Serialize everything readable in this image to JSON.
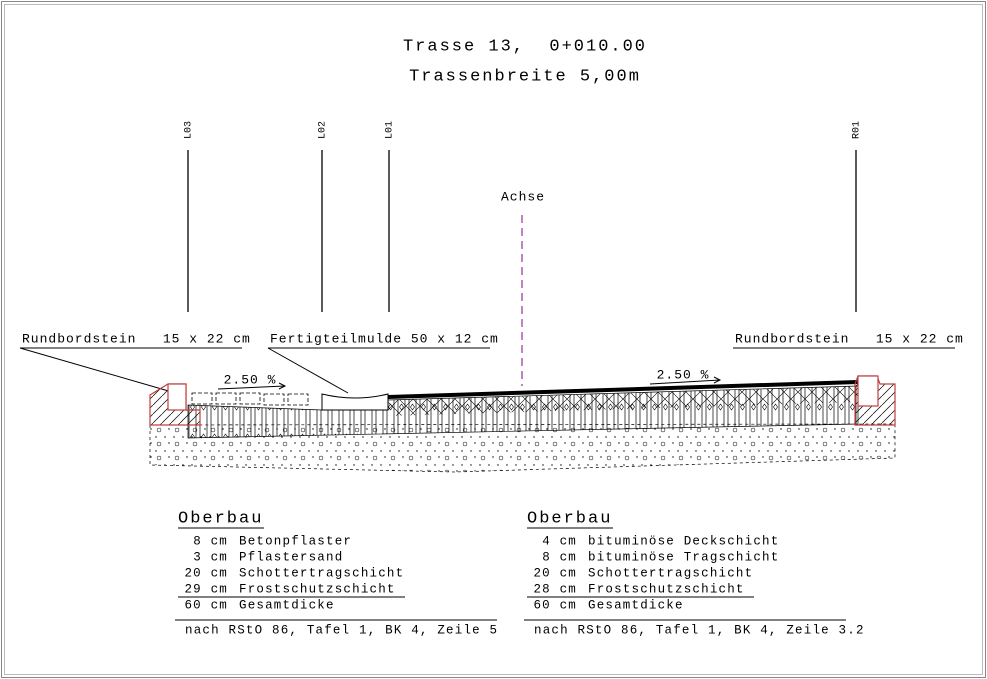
{
  "header": {
    "title": "Trasse 13,  0+010.00",
    "subtitle": "Trassenbreite 5,00m"
  },
  "stations": [
    "L03",
    "L02",
    "L01",
    "R01"
  ],
  "axis_label": "Achse",
  "callouts": [
    "Rundbordstein   15 x 22 cm",
    "Fertigteilmulde 50 x 12 cm",
    "Rundbordstein   15 x 22 cm"
  ],
  "slopes": [
    "2.50 %",
    "2.50 %"
  ],
  "sections": [
    {
      "heading": "Oberbau",
      "layers": [
        [
          "8 cm",
          "Betonpflaster"
        ],
        [
          "3 cm",
          "Pflastersand"
        ],
        [
          "20 cm",
          "Schottertragschicht"
        ],
        [
          "29 cm",
          "Frostschutzschicht"
        ]
      ],
      "total": [
        "60 cm",
        "Gesamtdicke"
      ],
      "note": "nach RStO 86, Tafel 1, BK 4, Zeile 5"
    },
    {
      "heading": "Oberbau",
      "layers": [
        [
          "4 cm",
          "bituminöse Deckschicht"
        ],
        [
          "8 cm",
          "bituminöse Tragschicht"
        ],
        [
          "20 cm",
          "Schottertragschicht"
        ],
        [
          "28 cm",
          "Frostschutzschicht"
        ]
      ],
      "total": [
        "60 cm",
        "Gesamtdicke"
      ],
      "note": "nach RStO 86, Tafel 1, BK 4, Zeile 3.2"
    }
  ]
}
